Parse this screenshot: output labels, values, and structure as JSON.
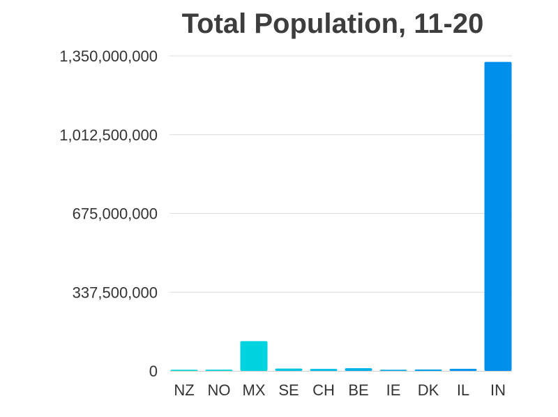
{
  "chart_data": {
    "type": "bar",
    "title": "Total Population, 11-20",
    "xlabel": "",
    "ylabel": "",
    "categories": [
      "NZ",
      "NO",
      "MX",
      "SE",
      "CH",
      "BE",
      "IE",
      "DK",
      "IL",
      "IN"
    ],
    "values": [
      4800000,
      5300000,
      127600000,
      10200000,
      8500000,
      11500000,
      4900000,
      5800000,
      9000000,
      1324000000
    ],
    "colors": [
      "#00d3d3",
      "#00d0d8",
      "#00d3e0",
      "#00c4e2",
      "#00bde4",
      "#00b2e6",
      "#00a8e8",
      "#00a0ea",
      "#0097ec",
      "#0090ec"
    ],
    "ylim": [
      0,
      1350000000
    ],
    "yticks": [
      0,
      337500000,
      675000000,
      1012500000,
      1350000000
    ],
    "ytick_labels": [
      "0",
      "337,500,000",
      "675,000,000",
      "1,012,500,000",
      "1,350,000,000"
    ],
    "grid": true,
    "legend": "none"
  }
}
